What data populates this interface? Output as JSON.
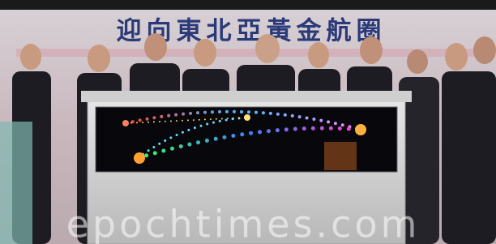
{
  "banner": {
    "title": "迎向東北亞黃金航圈"
  },
  "watermark": "epochtimes.com"
}
